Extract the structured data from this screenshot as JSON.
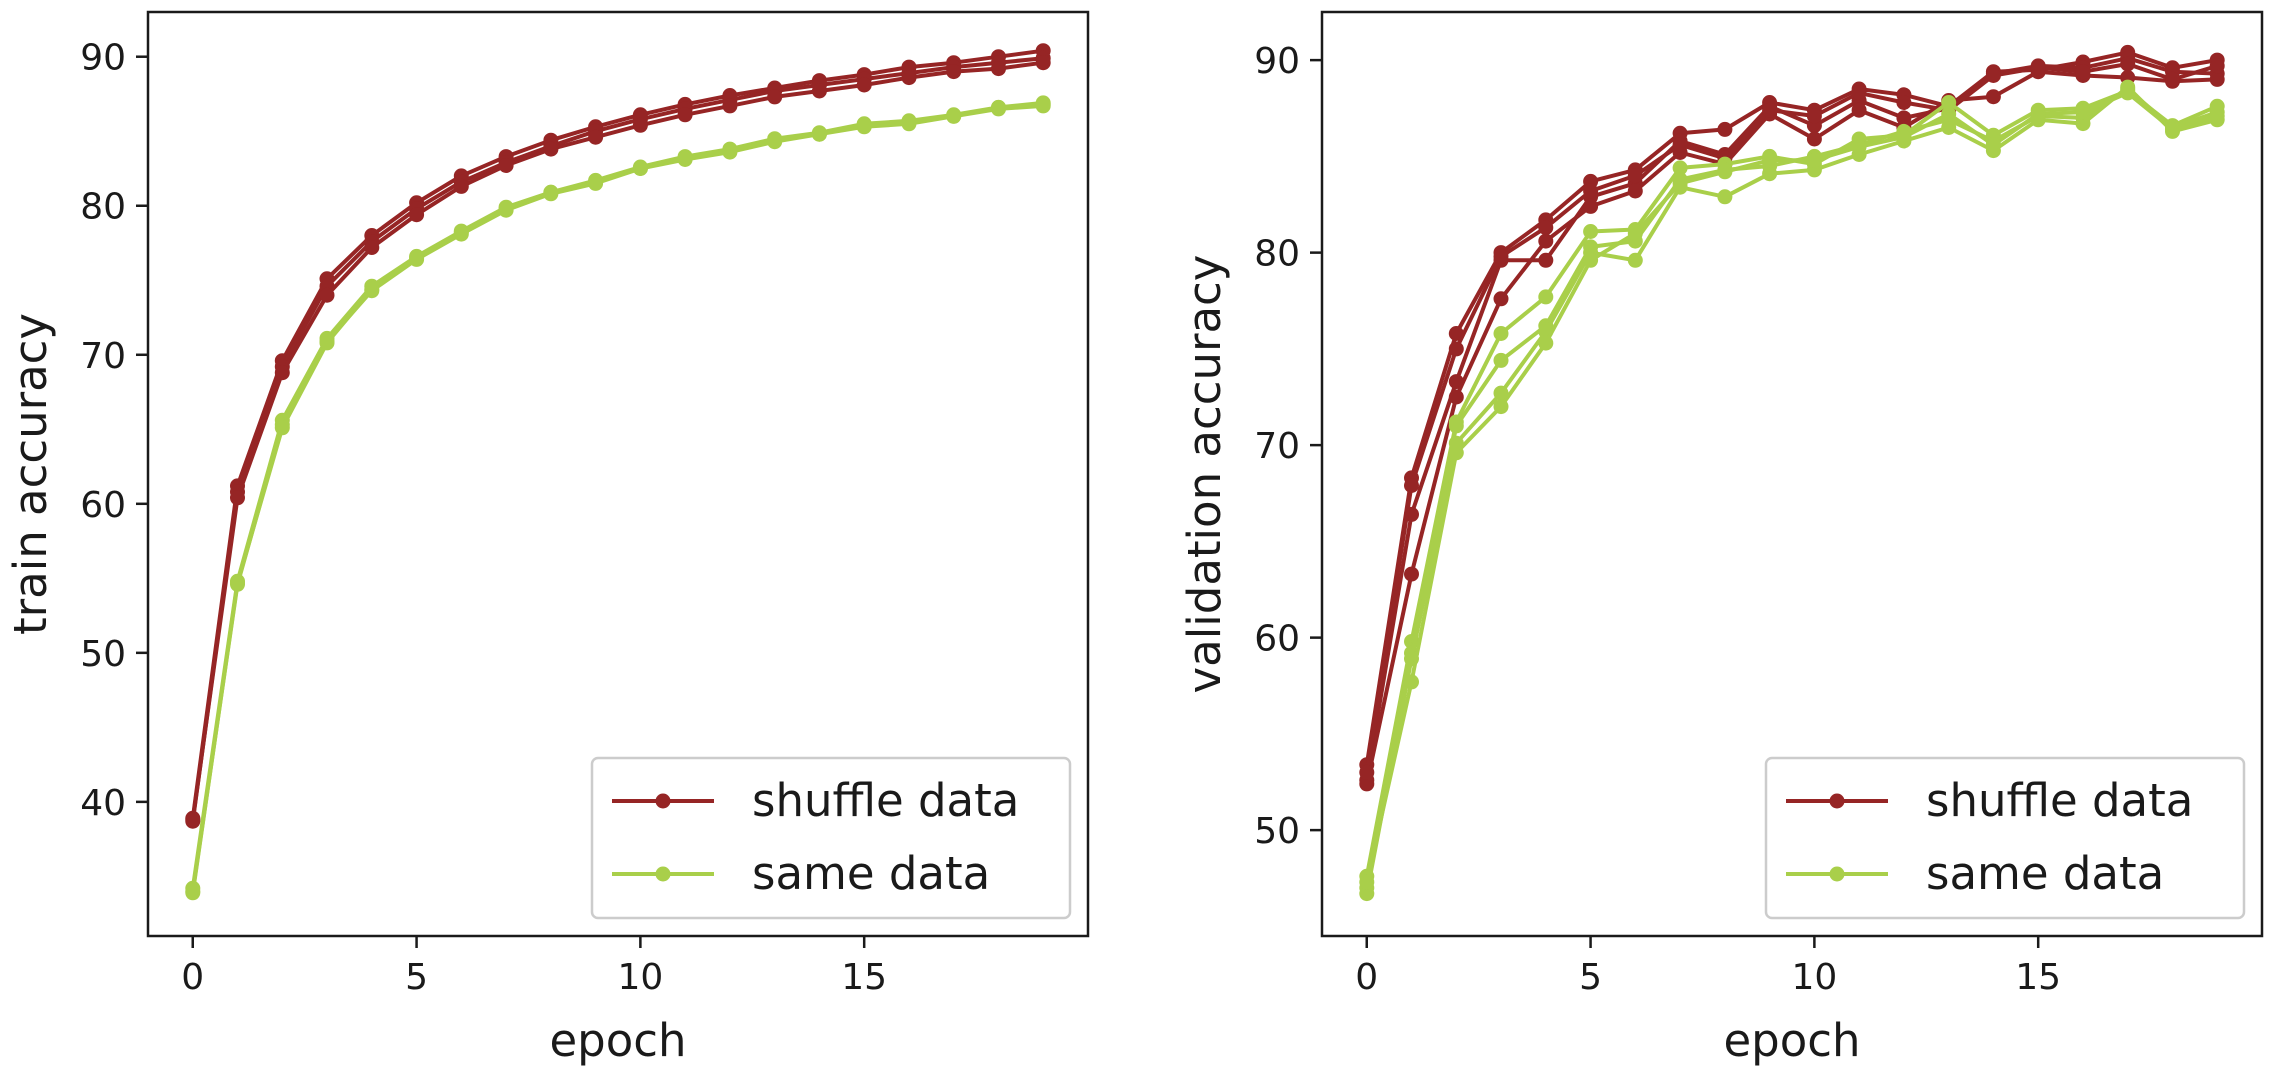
{
  "colors": {
    "shuffle": "#962525",
    "same": "#a9cf4a",
    "axis": "#1a1a1a",
    "legend_border": "#cccccc"
  },
  "chart_data": [
    {
      "type": "line",
      "xlabel": "epoch",
      "ylabel": "train accuracy",
      "xlim": [
        -1,
        20
      ],
      "ylim": [
        31,
        93
      ],
      "xticks": [
        0,
        5,
        10,
        15
      ],
      "yticks": [
        40,
        50,
        60,
        70,
        80,
        90
      ],
      "grid": false,
      "legend_position": "bottom-right",
      "legend": [
        "shuffle data",
        "same data"
      ],
      "x": [
        0,
        1,
        2,
        3,
        4,
        5,
        6,
        7,
        8,
        9,
        10,
        11,
        12,
        13,
        14,
        15,
        16,
        17,
        18,
        19
      ],
      "series": [
        {
          "name": "shuffle data",
          "group": "shuffle",
          "values": [
            38.9,
            61.2,
            69.6,
            75.1,
            78.0,
            80.2,
            82.0,
            83.3,
            84.4,
            85.3,
            86.1,
            86.8,
            87.4,
            87.9,
            88.4,
            88.8,
            89.3,
            89.6,
            90.0,
            90.4
          ]
        },
        {
          "group": "shuffle",
          "values": [
            38.7,
            60.8,
            69.2,
            74.6,
            77.6,
            79.8,
            81.6,
            82.9,
            84.0,
            85.0,
            85.8,
            86.5,
            87.1,
            87.7,
            88.1,
            88.5,
            88.9,
            89.3,
            89.6,
            89.9
          ]
        },
        {
          "group": "shuffle",
          "values": [
            38.8,
            60.4,
            68.8,
            74.0,
            77.2,
            79.4,
            81.3,
            82.7,
            83.8,
            84.6,
            85.4,
            86.1,
            86.7,
            87.3,
            87.7,
            88.1,
            88.6,
            89.0,
            89.2,
            89.6
          ]
        },
        {
          "name": "same data",
          "group": "same",
          "values": [
            34.2,
            54.8,
            65.6,
            71.1,
            74.6,
            76.6,
            78.3,
            79.9,
            80.9,
            81.7,
            82.6,
            83.3,
            83.8,
            84.5,
            84.9,
            85.5,
            85.7,
            86.1,
            86.6,
            86.9
          ]
        },
        {
          "group": "same",
          "values": [
            34.0,
            54.6,
            65.3,
            70.9,
            74.3,
            76.4,
            78.1,
            79.7,
            80.8,
            81.5,
            82.5,
            83.1,
            83.6,
            84.3,
            84.8,
            85.3,
            85.5,
            86.0,
            86.5,
            86.7
          ]
        },
        {
          "group": "same",
          "values": [
            33.9,
            54.7,
            65.1,
            70.8,
            74.4,
            76.5,
            78.2,
            79.8,
            80.9,
            81.6,
            82.5,
            83.2,
            83.7,
            84.4,
            84.8,
            85.4,
            85.6,
            86.0,
            86.6,
            86.8
          ]
        }
      ]
    },
    {
      "type": "line",
      "xlabel": "epoch",
      "ylabel": "validation accuracy",
      "xlim": [
        -1,
        20
      ],
      "ylim": [
        44.5,
        92.5
      ],
      "xticks": [
        0,
        5,
        10,
        15
      ],
      "yticks": [
        50,
        60,
        70,
        80,
        90
      ],
      "grid": false,
      "legend_position": "bottom-right",
      "legend": [
        "shuffle data",
        "same data"
      ],
      "x": [
        0,
        1,
        2,
        3,
        4,
        5,
        6,
        7,
        8,
        9,
        10,
        11,
        12,
        13,
        14,
        15,
        16,
        17,
        18,
        19
      ],
      "series": [
        {
          "name": "shuffle data",
          "group": "shuffle",
          "values": [
            53.4,
            68.3,
            75.8,
            80.0,
            81.7,
            83.7,
            84.3,
            86.2,
            86.4,
            87.8,
            87.4,
            88.5,
            88.2,
            87.6,
            89.4,
            89.5,
            89.9,
            90.4,
            89.6,
            90.0
          ]
        },
        {
          "group": "shuffle",
          "values": [
            52.6,
            66.4,
            73.3,
            79.6,
            79.6,
            82.9,
            83.6,
            85.8,
            85.1,
            87.6,
            86.6,
            87.9,
            87.0,
            87.5,
            89.3,
            89.7,
            89.6,
            90.1,
            89.4,
            89.3
          ]
        },
        {
          "group": "shuffle",
          "values": [
            52.4,
            63.3,
            72.5,
            77.6,
            80.6,
            82.4,
            83.2,
            85.2,
            84.6,
            87.2,
            85.9,
            87.4,
            86.5,
            87.9,
            88.1,
            89.4,
            89.2,
            89.1,
            88.9,
            89.0
          ]
        },
        {
          "group": "shuffle",
          "values": [
            53.0,
            67.9,
            75.0,
            79.8,
            81.3,
            83.2,
            84.0,
            85.6,
            84.9,
            87.4,
            87.1,
            88.3,
            87.8,
            87.4,
            89.2,
            89.6,
            89.4,
            89.8,
            89.0,
            89.7
          ]
        },
        {
          "name": "same data",
          "group": "same",
          "values": [
            47.6,
            59.8,
            71.2,
            75.8,
            77.7,
            81.1,
            81.2,
            84.4,
            84.6,
            85.0,
            84.6,
            85.9,
            86.1,
            87.8,
            86.1,
            87.4,
            87.5,
            88.4,
            86.6,
            87.6
          ]
        },
        {
          "group": "same",
          "values": [
            47.0,
            59.2,
            71.0,
            74.4,
            76.2,
            80.3,
            80.6,
            83.8,
            84.3,
            84.5,
            85.0,
            85.6,
            86.3,
            86.9,
            85.8,
            87.1,
            87.0,
            88.5,
            86.5,
            87.3
          ]
        },
        {
          "group": "same",
          "values": [
            46.7,
            58.9,
            70.1,
            72.7,
            75.9,
            80.0,
            79.6,
            83.4,
            82.9,
            84.1,
            84.3,
            85.1,
            85.8,
            86.5,
            85.3,
            86.9,
            86.7,
            88.6,
            86.3,
            86.9
          ]
        },
        {
          "group": "same",
          "values": [
            47.3,
            57.7,
            69.6,
            72.0,
            75.3,
            79.6,
            81.0,
            83.6,
            84.2,
            84.8,
            84.8,
            85.5,
            86.0,
            87.2,
            85.6,
            87.2,
            87.3,
            88.3,
            86.4,
            87.1
          ]
        }
      ]
    }
  ]
}
